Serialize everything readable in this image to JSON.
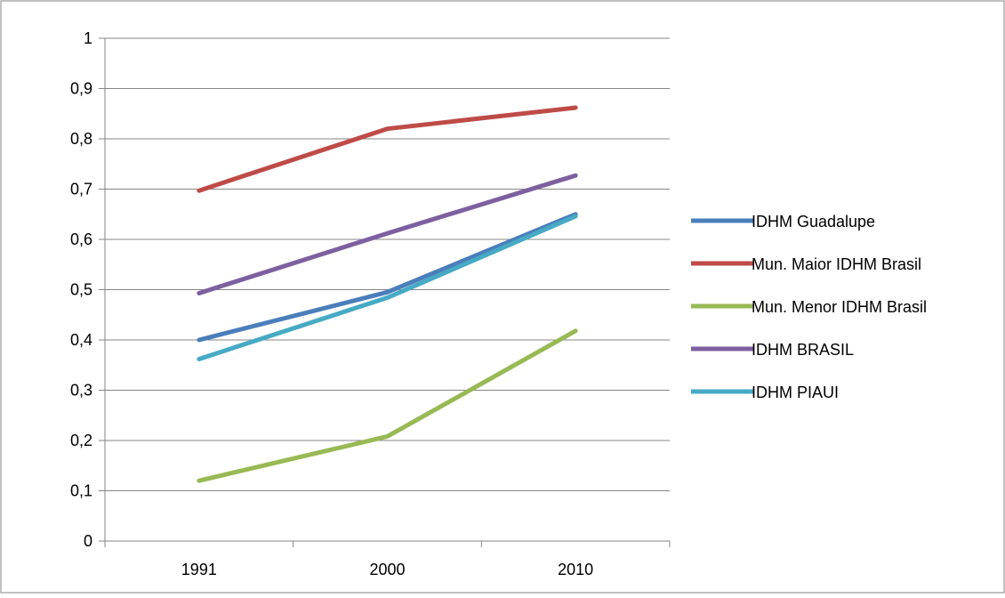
{
  "chart_data": {
    "type": "line",
    "title": "",
    "xlabel": "",
    "ylabel": "",
    "categories": [
      "1991",
      "2000",
      "2010"
    ],
    "ylim": [
      0,
      1
    ],
    "y_ticks": [
      "0",
      "0,1",
      "0,2",
      "0,3",
      "0,4",
      "0,5",
      "0,6",
      "0,7",
      "0,8",
      "0,9",
      "1"
    ],
    "grid": true,
    "legend_position": "right",
    "series": [
      {
        "name": "IDHM Guadalupe",
        "color": "#4a7ebb",
        "values": [
          0.4,
          0.495,
          0.65
        ]
      },
      {
        "name": "Mun. Maior IDHM Brasil",
        "color": "#be4b48",
        "values": [
          0.697,
          0.82,
          0.862
        ]
      },
      {
        "name": "Mun. Menor IDHM Brasil",
        "color": "#98b954",
        "values": [
          0.12,
          0.208,
          0.418
        ]
      },
      {
        "name": "IDHM BRASIL",
        "color": "#7d60a0",
        "values": [
          0.493,
          0.612,
          0.727
        ]
      },
      {
        "name": "IDHM PIAUI",
        "color": "#46aac5",
        "values": [
          0.362,
          0.484,
          0.646
        ]
      }
    ]
  }
}
